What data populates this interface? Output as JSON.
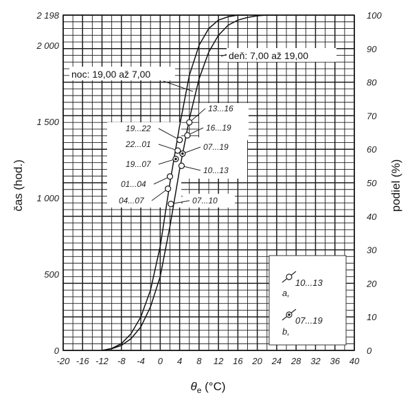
{
  "chart_data": {
    "type": "line",
    "xlabel_main": "θ",
    "xlabel_sub": "e",
    "xlabel_unit": " (°C)",
    "ylabel_left": "čas (hod.)",
    "ylabel_right": "podiel (%)",
    "xlim": [
      -20,
      40
    ],
    "ylim_left": [
      0,
      2198
    ],
    "ylim_right": [
      0,
      100
    ],
    "x_ticks": [
      -20,
      -16,
      -12,
      -8,
      -4,
      0,
      4,
      8,
      12,
      16,
      20,
      24,
      28,
      32,
      36,
      40
    ],
    "x_tick_labels": [
      "-20",
      "-16",
      "-12",
      "-8",
      "-4",
      "0",
      "4",
      "8",
      "12",
      "16",
      "20",
      "24",
      "28",
      "32",
      "36",
      "40"
    ],
    "y_left_ticks": [
      0,
      500,
      1000,
      1500,
      2000,
      2198
    ],
    "y_left_tick_labels": [
      "0",
      "500",
      "1 000",
      "1 500",
      "2 000",
      "2 198"
    ],
    "y_right_ticks": [
      0,
      10,
      20,
      30,
      40,
      50,
      60,
      70,
      80,
      90,
      100
    ],
    "y_right_tick_labels": [
      "0",
      "10",
      "20",
      "30",
      "40",
      "50",
      "60",
      "70",
      "80",
      "90",
      "100"
    ],
    "grid": true,
    "series": [
      {
        "name": "noc: 19,00 až 7,00",
        "x": [
          -12,
          -10,
          -8,
          -6,
          -4,
          -2,
          0,
          2,
          4,
          6,
          8,
          10,
          12,
          14,
          16,
          18
        ],
        "y": [
          0,
          0.6,
          2,
          5,
          10,
          18,
          31,
          50,
          67,
          82,
          91,
          96,
          98.5,
          99.5,
          100,
          100
        ]
      },
      {
        "name": "deň: 7,00 až 19,00",
        "x": [
          -12,
          -10,
          -8,
          -6,
          -4,
          -2,
          0,
          2,
          4,
          6,
          8,
          10,
          12,
          14,
          16,
          18,
          20,
          22,
          24
        ],
        "y": [
          0,
          0.5,
          1.5,
          3.5,
          7,
          13,
          22,
          37,
          54,
          69,
          81,
          89,
          94,
          97,
          98.5,
          99.3,
          99.8,
          100,
          100
        ]
      }
    ],
    "annotations": [
      {
        "label": "13...16",
        "type": "a",
        "x": 6,
        "y": 1495
      },
      {
        "label": "16...19",
        "type": "a",
        "x": 5.6,
        "y": 1410
      },
      {
        "label": "19...22",
        "type": "a",
        "x": 4,
        "y": 1380
      },
      {
        "label": "22...01",
        "type": "a",
        "x": 3.6,
        "y": 1310
      },
      {
        "label": "07...19",
        "type": "b",
        "x": 4.6,
        "y": 1290
      },
      {
        "label": "19...07",
        "type": "b",
        "x": 3.2,
        "y": 1255
      },
      {
        "label": "10...13",
        "type": "a",
        "x": 4.4,
        "y": 1210
      },
      {
        "label": "01...04",
        "type": "a",
        "x": 2,
        "y": 1140
      },
      {
        "label": "04...07",
        "type": "a",
        "x": 1.6,
        "y": 1060
      },
      {
        "label": "07...10",
        "type": "a",
        "x": 2.2,
        "y": 960
      }
    ],
    "legend": [
      {
        "marker": "a",
        "label": "10...13",
        "sub": "a,"
      },
      {
        "marker": "b",
        "label": "07...19",
        "sub": "b,"
      }
    ],
    "legend_placement": "bottom-right"
  }
}
